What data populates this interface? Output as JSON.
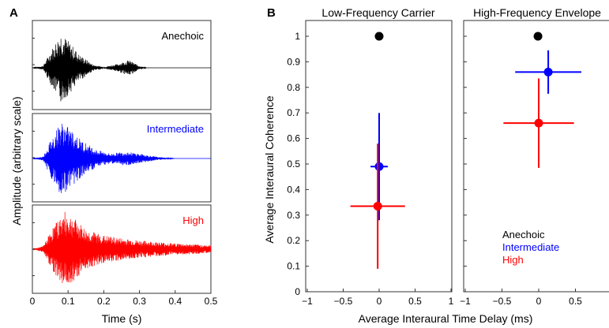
{
  "panel_a": {
    "letter": "A",
    "ylabel": "Amplitude (arbitrary scale)",
    "xlabel": "Time (s)",
    "xlim": [
      0,
      0.5
    ],
    "xticks": [
      "0",
      "0.1",
      "0.2",
      "0.3",
      "0.4",
      "0.5"
    ]
  },
  "panel_b": {
    "letter": "B",
    "ylabel": "Average Interaural Coherence",
    "xlabel": "Average Interaural Time Delay (ms)"
  },
  "colors": {
    "Anechoic": "#000000",
    "Intermediate": "#0000ff",
    "High": "#ff0000"
  },
  "chart_data": [
    {
      "type": "line",
      "title": "",
      "xlabel": "Time (s)",
      "ylabel": "Amplitude (arbitrary scale)",
      "xlim": [
        0,
        0.5
      ],
      "xticks": [
        0,
        0.1,
        0.2,
        0.3,
        0.4,
        0.5
      ],
      "grid": false,
      "series": [
        {
          "name": "Anechoic",
          "description_envelope": [
            [
              0.0,
              0
            ],
            [
              0.03,
              0.05
            ],
            [
              0.05,
              0.4
            ],
            [
              0.08,
              0.9
            ],
            [
              0.1,
              0.7
            ],
            [
              0.13,
              0.35
            ],
            [
              0.17,
              0.08
            ],
            [
              0.2,
              0.02
            ],
            [
              0.24,
              0.1
            ],
            [
              0.27,
              0.2
            ],
            [
              0.3,
              0.05
            ],
            [
              0.32,
              0
            ]
          ]
        },
        {
          "name": "Intermediate",
          "description_envelope": [
            [
              0.0,
              0
            ],
            [
              0.03,
              0.05
            ],
            [
              0.05,
              0.45
            ],
            [
              0.08,
              0.95
            ],
            [
              0.1,
              0.8
            ],
            [
              0.14,
              0.45
            ],
            [
              0.18,
              0.22
            ],
            [
              0.22,
              0.12
            ],
            [
              0.26,
              0.18
            ],
            [
              0.3,
              0.12
            ],
            [
              0.35,
              0.04
            ],
            [
              0.4,
              0
            ]
          ]
        },
        {
          "name": "High",
          "description_envelope": [
            [
              0.0,
              0
            ],
            [
              0.03,
              0.08
            ],
            [
              0.06,
              0.6
            ],
            [
              0.09,
              0.95
            ],
            [
              0.11,
              0.85
            ],
            [
              0.15,
              0.5
            ],
            [
              0.2,
              0.35
            ],
            [
              0.25,
              0.28
            ],
            [
              0.3,
              0.22
            ],
            [
              0.4,
              0.15
            ],
            [
              0.5,
              0.1
            ]
          ]
        }
      ]
    },
    {
      "type": "scatter",
      "title": "Low-Frequency Carrier",
      "xlabel": "Average Interaural Time Delay (ms)",
      "ylabel": "Average Interaural Coherence",
      "xlim": [
        -1,
        1
      ],
      "ylim": [
        0,
        1.05
      ],
      "xticks": [
        -1,
        -0.5,
        0,
        0.5,
        1
      ],
      "yticks": [
        0,
        0.1,
        0.2,
        0.3,
        0.4,
        0.5,
        0.6,
        0.7,
        0.8,
        0.9,
        1
      ],
      "series": [
        {
          "name": "Anechoic",
          "x": 0.0,
          "y": 1.0,
          "xerr": 0.0,
          "yerr": [
            0.0,
            0.0
          ]
        },
        {
          "name": "Intermediate",
          "x": 0.0,
          "y": 0.49,
          "xerr": 0.12,
          "yerr": [
            0.21,
            0.21
          ]
        },
        {
          "name": "High",
          "x": -0.02,
          "y": 0.335,
          "xerr": 0.38,
          "yerr": [
            0.245,
            0.245
          ]
        }
      ]
    },
    {
      "type": "scatter",
      "title": "High-Frequency Envelope",
      "xlim": [
        -1,
        1
      ],
      "ylim": [
        0,
        1.05
      ],
      "xticks": [
        -1,
        -0.5,
        0,
        0.5
      ],
      "legend": {
        "placement": "bottom-left",
        "entries": [
          "Anechoic",
          "Intermediate",
          "High"
        ]
      },
      "series": [
        {
          "name": "Anechoic",
          "x": -0.01,
          "y": 1.0,
          "xerr": 0.0,
          "yerr": [
            0.0,
            0.0
          ]
        },
        {
          "name": "Intermediate",
          "x": 0.13,
          "y": 0.86,
          "xerr": 0.45,
          "yerr": [
            0.085,
            0.085
          ]
        },
        {
          "name": "High",
          "x": 0.0,
          "y": 0.66,
          "xerr": 0.48,
          "yerr": [
            0.175,
            0.175
          ]
        }
      ]
    }
  ]
}
